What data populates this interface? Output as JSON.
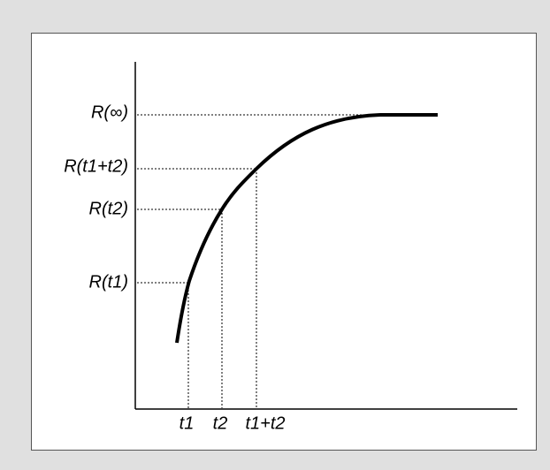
{
  "y_labels": [
    "R(∞)",
    "R(t1+t2)",
    "R(t2)",
    "R(t1)"
  ],
  "x_labels": [
    "t1",
    "t2",
    "t1+t2"
  ]
}
